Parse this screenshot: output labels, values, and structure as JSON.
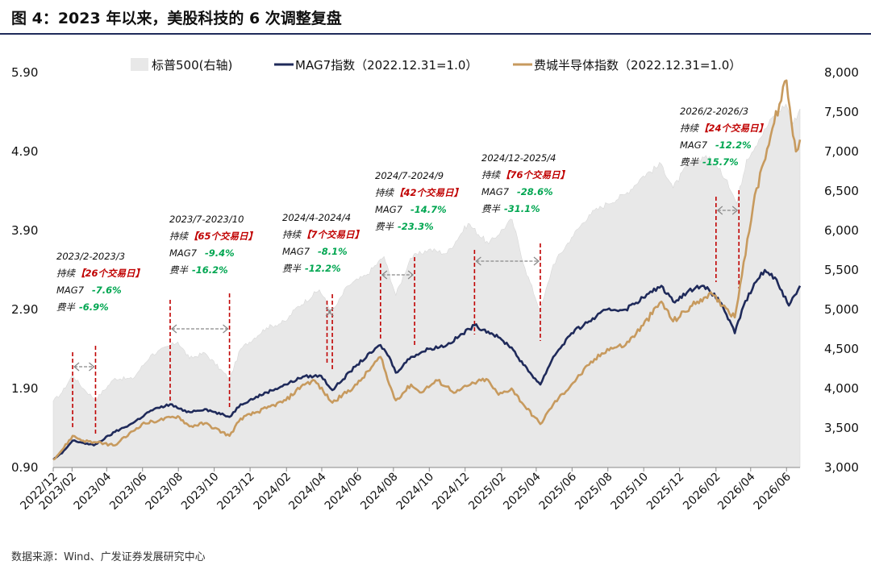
{
  "header": {
    "title": "图 4：2023 年以来，美股科技的 6 次调整复盘",
    "source": "数据来源：Wind、广发证券发展研究中心"
  },
  "chart_data": {
    "type": "line",
    "title": "图 4：2023 年以来，美股科技的 6 次调整复盘",
    "x_range": [
      "2022-12-31",
      "2026-06-24"
    ],
    "x_ticks": [
      "2022/12",
      "2023/02",
      "2023/04",
      "2023/06",
      "2023/08",
      "2023/10",
      "2023/12",
      "2024/02",
      "2024/04",
      "2024/06",
      "2024/08",
      "2024/10",
      "2024/12",
      "2025/02",
      "2025/04",
      "2025/06",
      "2025/08",
      "2025/10",
      "2025/12",
      "2026/02",
      "2026/04",
      "2026/06"
    ],
    "y_left": {
      "min": 0.9,
      "max": 5.9,
      "ticks": [
        "0.90",
        "1.90",
        "2.90",
        "3.90",
        "4.90",
        "5.90"
      ]
    },
    "y_right": {
      "min": 3000,
      "max": 8000,
      "ticks": [
        "3,000",
        "3,500",
        "4,000",
        "4,500",
        "5,000",
        "5,500",
        "6,000",
        "6,500",
        "7,000",
        "7,500",
        "8,000"
      ]
    },
    "legend_position": "top",
    "series": [
      {
        "name": "标普500(右轴)",
        "axis": "right",
        "style": "area",
        "color": "#e8e8e8",
        "points": [
          [
            "2022-12-31",
            3840
          ],
          [
            "2023-01-15",
            3950
          ],
          [
            "2023-02-02",
            4170
          ],
          [
            "2023-02-20",
            4000
          ],
          [
            "2023-03-13",
            3860
          ],
          [
            "2023-04-15",
            4130
          ],
          [
            "2023-05-15",
            4120
          ],
          [
            "2023-06-15",
            4420
          ],
          [
            "2023-07-31",
            4590
          ],
          [
            "2023-08-20",
            4380
          ],
          [
            "2023-09-15",
            4450
          ],
          [
            "2023-10-27",
            4120
          ],
          [
            "2023-11-15",
            4500
          ],
          [
            "2023-12-29",
            4770
          ],
          [
            "2024-01-31",
            4850
          ],
          [
            "2024-02-15",
            5000
          ],
          [
            "2024-03-28",
            5250
          ],
          [
            "2024-04-19",
            4960
          ],
          [
            "2024-05-15",
            5300
          ],
          [
            "2024-06-15",
            5430
          ],
          [
            "2024-07-16",
            5670
          ],
          [
            "2024-08-05",
            5180
          ],
          [
            "2024-08-30",
            5650
          ],
          [
            "2024-09-30",
            5760
          ],
          [
            "2024-10-31",
            5710
          ],
          [
            "2024-12-06",
            6090
          ],
          [
            "2025-01-10",
            5830
          ],
          [
            "2025-02-19",
            6140
          ],
          [
            "2025-03-13",
            5520
          ],
          [
            "2025-04-08",
            4980
          ],
          [
            "2025-04-30",
            5570
          ],
          [
            "2025-05-31",
            5910
          ],
          [
            "2025-06-30",
            6200
          ],
          [
            "2025-07-31",
            6340
          ],
          [
            "2025-08-31",
            6460
          ],
          [
            "2025-09-30",
            6690
          ],
          [
            "2025-10-31",
            6840
          ],
          [
            "2025-11-20",
            6540
          ],
          [
            "2025-12-15",
            6830
          ],
          [
            "2026-01-15",
            6950
          ],
          [
            "2026-02-05",
            6780
          ],
          [
            "2026-02-20",
            6640
          ],
          [
            "2026-03-08",
            6340
          ],
          [
            "2026-03-25",
            6900
          ],
          [
            "2026-04-15",
            7150
          ],
          [
            "2026-05-10",
            7450
          ],
          [
            "2026-05-31",
            7600
          ],
          [
            "2026-06-12",
            7350
          ],
          [
            "2026-06-24",
            7540
          ]
        ]
      },
      {
        "name": "MAG7指数（2022.12.31=1.0）",
        "axis": "left",
        "style": "line",
        "color": "#1f2a5a",
        "points": [
          [
            "2022-12-31",
            1.0
          ],
          [
            "2023-01-15",
            1.08
          ],
          [
            "2023-02-02",
            1.24
          ],
          [
            "2023-02-15",
            1.22
          ],
          [
            "2023-03-10",
            1.18
          ],
          [
            "2023-04-15",
            1.35
          ],
          [
            "2023-05-15",
            1.46
          ],
          [
            "2023-06-15",
            1.62
          ],
          [
            "2023-07-18",
            1.7
          ],
          [
            "2023-08-15",
            1.6
          ],
          [
            "2023-09-15",
            1.64
          ],
          [
            "2023-10-27",
            1.54
          ],
          [
            "2023-11-15",
            1.7
          ],
          [
            "2023-12-29",
            1.85
          ],
          [
            "2024-01-31",
            1.95
          ],
          [
            "2024-02-29",
            2.05
          ],
          [
            "2024-03-31",
            2.06
          ],
          [
            "2024-04-19",
            1.88
          ],
          [
            "2024-05-31",
            2.2
          ],
          [
            "2024-07-10",
            2.45
          ],
          [
            "2024-07-25",
            2.3
          ],
          [
            "2024-08-05",
            2.1
          ],
          [
            "2024-08-31",
            2.3
          ],
          [
            "2024-09-30",
            2.4
          ],
          [
            "2024-10-31",
            2.45
          ],
          [
            "2024-12-17",
            2.7
          ],
          [
            "2025-01-15",
            2.6
          ],
          [
            "2025-02-04",
            2.5
          ],
          [
            "2025-02-18",
            2.42
          ],
          [
            "2025-03-10",
            2.2
          ],
          [
            "2025-04-08",
            1.95
          ],
          [
            "2025-04-30",
            2.3
          ],
          [
            "2025-05-31",
            2.6
          ],
          [
            "2025-06-30",
            2.75
          ],
          [
            "2025-07-31",
            2.9
          ],
          [
            "2025-08-31",
            2.9
          ],
          [
            "2025-09-30",
            3.05
          ],
          [
            "2025-10-31",
            3.2
          ],
          [
            "2025-11-20",
            3.0
          ],
          [
            "2025-12-31",
            3.2
          ],
          [
            "2026-01-20",
            3.15
          ],
          [
            "2026-02-10",
            2.98
          ],
          [
            "2026-03-05",
            2.6
          ],
          [
            "2026-03-20",
            2.95
          ],
          [
            "2026-04-10",
            3.25
          ],
          [
            "2026-04-25",
            3.4
          ],
          [
            "2026-05-15",
            3.28
          ],
          [
            "2026-06-05",
            2.95
          ],
          [
            "2026-06-24",
            3.2
          ]
        ]
      },
      {
        "name": "费城半导体指数（2022.12.31=1.0）",
        "axis": "left",
        "style": "line",
        "color": "#c79a5e",
        "points": [
          [
            "2022-12-31",
            1.0
          ],
          [
            "2023-01-15",
            1.12
          ],
          [
            "2023-02-02",
            1.3
          ],
          [
            "2023-02-20",
            1.24
          ],
          [
            "2023-03-10",
            1.22
          ],
          [
            "2023-04-15",
            1.18
          ],
          [
            "2023-05-31",
            1.45
          ],
          [
            "2023-06-30",
            1.5
          ],
          [
            "2023-07-31",
            1.55
          ],
          [
            "2023-08-20",
            1.42
          ],
          [
            "2023-09-15",
            1.46
          ],
          [
            "2023-10-27",
            1.3
          ],
          [
            "2023-11-15",
            1.52
          ],
          [
            "2023-12-29",
            1.65
          ],
          [
            "2024-01-31",
            1.75
          ],
          [
            "2024-02-29",
            1.95
          ],
          [
            "2024-03-20",
            2.0
          ],
          [
            "2024-04-19",
            1.72
          ],
          [
            "2024-05-31",
            1.95
          ],
          [
            "2024-07-10",
            2.3
          ],
          [
            "2024-07-25",
            1.95
          ],
          [
            "2024-08-05",
            1.75
          ],
          [
            "2024-08-31",
            1.95
          ],
          [
            "2024-09-15",
            1.85
          ],
          [
            "2024-10-15",
            2.0
          ],
          [
            "2024-11-15",
            1.85
          ],
          [
            "2024-12-10",
            1.95
          ],
          [
            "2025-01-06",
            2.02
          ],
          [
            "2025-01-27",
            1.82
          ],
          [
            "2025-02-18",
            1.9
          ],
          [
            "2025-03-10",
            1.7
          ],
          [
            "2025-04-08",
            1.45
          ],
          [
            "2025-04-30",
            1.7
          ],
          [
            "2025-05-31",
            1.95
          ],
          [
            "2025-06-30",
            2.2
          ],
          [
            "2025-07-31",
            2.4
          ],
          [
            "2025-08-31",
            2.45
          ],
          [
            "2025-09-30",
            2.7
          ],
          [
            "2025-10-31",
            3.0
          ],
          [
            "2025-11-20",
            2.75
          ],
          [
            "2025-12-31",
            3.0
          ],
          [
            "2026-01-20",
            3.1
          ],
          [
            "2026-02-15",
            2.95
          ],
          [
            "2026-03-05",
            2.8
          ],
          [
            "2026-03-20",
            3.5
          ],
          [
            "2026-04-05",
            4.2
          ],
          [
            "2026-04-20",
            4.7
          ],
          [
            "2026-05-05",
            5.1
          ],
          [
            "2026-05-20",
            5.5
          ],
          [
            "2026-06-01",
            5.8
          ],
          [
            "2026-06-12",
            5.1
          ],
          [
            "2026-06-17",
            4.9
          ],
          [
            "2026-06-24",
            5.05
          ]
        ]
      }
    ],
    "annotations": [
      {
        "period": "2023/2-2023/3",
        "duration_prefix": "持续",
        "duration": "【26个交易日】",
        "mag7_label": "MAG7",
        "mag7_change": "-7.6%",
        "sox_label": "费半",
        "sox_change": "-6.9%",
        "start": "2023-02-02",
        "end": "2023-03-13"
      },
      {
        "period": "2023/7-2023/10",
        "duration_prefix": "持续",
        "duration": "【65个交易日】",
        "mag7_label": "MAG7",
        "mag7_change": "-9.4%",
        "sox_label": "费半",
        "sox_change": "-16.2%",
        "start": "2023-07-18",
        "end": "2023-10-27"
      },
      {
        "period": "2024/4-2024/4",
        "duration_prefix": "持续",
        "duration": "【7个交易日】",
        "mag7_label": "MAG7",
        "mag7_change": "-8.1%",
        "sox_label": "费半",
        "sox_change": "-12.2%",
        "start": "2024-04-10",
        "end": "2024-04-19"
      },
      {
        "period": "2024/7-2024/9",
        "duration_prefix": "持续",
        "duration": "【42个交易日】",
        "mag7_label": "MAG7",
        "mag7_change": "-14.7%",
        "sox_label": "费半",
        "sox_change": "-23.3%",
        "start": "2024-07-10",
        "end": "2024-09-06"
      },
      {
        "period": "2024/12-2025/4",
        "duration_prefix": "持续",
        "duration": "【76个交易日】",
        "mag7_label": "MAG7",
        "mag7_change": "-28.6%",
        "sox_label": "费半",
        "sox_change": "-31.1%",
        "start": "2024-12-17",
        "end": "2025-04-08"
      },
      {
        "period": "2026/2-2026/3",
        "duration_prefix": "持续",
        "duration": "【24个交易日】",
        "mag7_label": "MAG7",
        "mag7_change": "-12.2%",
        "sox_label": "费半",
        "sox_change": "-15.7%",
        "start": "2026-02-01",
        "end": "2026-03-12"
      }
    ],
    "colors": {
      "mag7": "#1f2a5a",
      "sox": "#c79a5e",
      "spx_area": "#e8e8e8",
      "marker": "#c00000",
      "change": "#00a651",
      "arrow": "#888888"
    }
  }
}
